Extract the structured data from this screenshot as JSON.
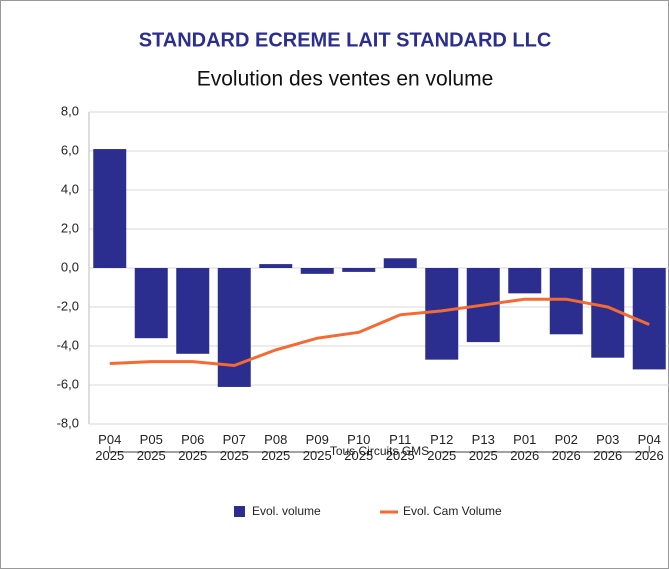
{
  "chart_data": {
    "type": "bar_line",
    "title": "STANDARD ECREME LAIT STANDARD LLC",
    "subtitle": "Evolution des ventes en volume",
    "categories": [
      "P04\n2025",
      "P05\n2025",
      "P06\n2025",
      "P07\n2025",
      "P08\n2025",
      "P09\n2025",
      "P10\n2025",
      "P11\n2025",
      "P12\n2025",
      "P13\n2025",
      "P01\n2026",
      "P02\n2026",
      "P03\n2026",
      "P04\n2026"
    ],
    "group_label": "Tous Circuits GMS",
    "series": [
      {
        "name": "Evol. volume",
        "type": "bar",
        "color": "#2c2e8f",
        "values": [
          6.1,
          -3.6,
          -4.4,
          -6.1,
          0.2,
          -0.3,
          -0.2,
          0.5,
          -4.7,
          -3.8,
          -1.3,
          -3.4,
          -4.6,
          -5.2
        ]
      },
      {
        "name": "Evol. Cam Volume",
        "type": "line",
        "color": "#f46a32",
        "values": [
          -4.9,
          -4.8,
          -4.8,
          -5.0,
          -4.2,
          -3.6,
          -3.3,
          -2.4,
          -2.2,
          -1.9,
          -1.6,
          -1.6,
          -2.0,
          -2.9
        ]
      }
    ],
    "ylim": [
      -8,
      8
    ],
    "yticks": [
      {
        "value": -8,
        "label": "-8,0"
      },
      {
        "value": -6,
        "label": "-6,0"
      },
      {
        "value": -4,
        "label": "-4,0"
      },
      {
        "value": -2,
        "label": "-2,0"
      },
      {
        "value": 0,
        "label": "0,0"
      },
      {
        "value": 2,
        "label": "2,0"
      },
      {
        "value": 4,
        "label": "4,0"
      },
      {
        "value": 6,
        "label": "6,0"
      },
      {
        "value": 8,
        "label": "8,0"
      }
    ],
    "grid": true
  }
}
